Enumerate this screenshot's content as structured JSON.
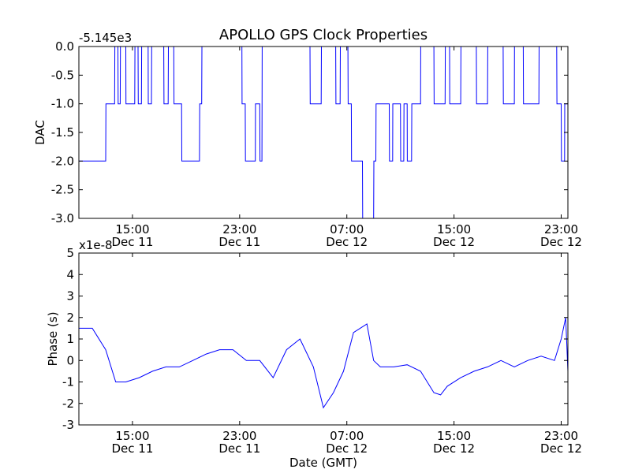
{
  "chart_data": [
    {
      "type": "line",
      "title": "APOLLO GPS Clock Properties",
      "ylabel": "DAC",
      "offset_text": "-5.145e3",
      "ylim": [
        -3.0,
        0.0
      ],
      "yticks": [
        "-3.0",
        "-2.5",
        "-2.0",
        "-1.5",
        "-1.0",
        "-0.5",
        "0.0"
      ],
      "xlim": [
        "2011-12-11T11:00",
        "2011-12-12T23:30"
      ],
      "xticks": [
        {
          "time": "Dec 11 15:00",
          "line1": "15:00",
          "line2": "Dec 11"
        },
        {
          "time": "Dec 11 23:00",
          "line1": "23:00",
          "line2": "Dec 11"
        },
        {
          "time": "Dec 12 07:00",
          "line1": "07:00",
          "line2": "Dec 12"
        },
        {
          "time": "Dec 12 15:00",
          "line1": "15:00",
          "line2": "Dec 12"
        },
        {
          "time": "Dec 12 23:00",
          "line1": "23:00",
          "line2": "Dec 12"
        }
      ],
      "line_color": "#0000ff",
      "series": [
        {
          "x": [
            "Dec 11 11:00",
            "Dec 11 13:00",
            "Dec 11 13:01",
            "Dec 11 13:40",
            "Dec 11 13:41",
            "Dec 11 13:55",
            "Dec 11 13:56",
            "Dec 11 14:05",
            "Dec 11 14:06",
            "Dec 11 14:30",
            "Dec 11 14:31",
            "Dec 11 15:10",
            "Dec 11 15:11",
            "Dec 11 15:25",
            "Dec 11 15:26",
            "Dec 11 15:40",
            "Dec 11 15:41",
            "Dec 11 16:10",
            "Dec 11 16:11",
            "Dec 11 16:25",
            "Dec 11 16:26",
            "Dec 11 17:20",
            "Dec 11 17:21",
            "Dec 11 17:40",
            "Dec 11 17:41",
            "Dec 11 18:05",
            "Dec 11 18:06",
            "Dec 11 18:40",
            "Dec 11 18:41",
            "Dec 11 20:00",
            "Dec 11 20:01",
            "Dec 11 20:10",
            "Dec 11 20:11",
            "Dec 11 23:10",
            "Dec 11 23:11",
            "Dec 11 23:25",
            "Dec 11 23:26",
            "Dec 12 00:10",
            "Dec 12 00:11",
            "Dec 12 00:30",
            "Dec 12 00:31",
            "Dec 12 00:40",
            "Dec 12 00:41",
            "Dec 12 04:15",
            "Dec 12 04:16",
            "Dec 12 05:05",
            "Dec 12 05:06",
            "Dec 12 06:10",
            "Dec 12 06:11",
            "Dec 12 06:30",
            "Dec 12 06:31",
            "Dec 12 07:05",
            "Dec 12 07:06",
            "Dec 12 07:20",
            "Dec 12 07:21",
            "Dec 12 08:10",
            "Dec 12 08:11",
            "Dec 12 09:00",
            "Dec 12 09:01",
            "Dec 12 09:10",
            "Dec 12 09:11",
            "Dec 12 10:10",
            "Dec 12 10:11",
            "Dec 12 10:25",
            "Dec 12 10:26",
            "Dec 12 11:00",
            "Dec 12 11:01",
            "Dec 12 11:15",
            "Dec 12 11:16",
            "Dec 12 11:30",
            "Dec 12 11:31",
            "Dec 12 11:50",
            "Dec 12 11:51",
            "Dec 12 12:30",
            "Dec 12 12:31",
            "Dec 12 13:30",
            "Dec 12 13:31",
            "Dec 12 14:20",
            "Dec 12 14:21",
            "Dec 12 14:40",
            "Dec 12 14:41",
            "Dec 12 15:30",
            "Dec 12 15:31",
            "Dec 12 16:40",
            "Dec 12 16:41",
            "Dec 12 17:30",
            "Dec 12 17:31",
            "Dec 12 18:40",
            "Dec 12 18:41",
            "Dec 12 19:30",
            "Dec 12 19:31",
            "Dec 12 20:10",
            "Dec 12 20:11",
            "Dec 12 21:20",
            "Dec 12 21:21",
            "Dec 12 22:40",
            "Dec 12 22:41",
            "Dec 12 23:00",
            "Dec 12 23:01",
            "Dec 12 23:15",
            "Dec 12 23:16",
            "Dec 12 23:30"
          ],
          "y": [
            -2.0,
            -2.0,
            -1.0,
            -1.0,
            0.0,
            0.0,
            -1.0,
            -1.0,
            0.0,
            0.0,
            -1.0,
            -1.0,
            0.0,
            0.0,
            -1.0,
            -1.0,
            0.0,
            0.0,
            -1.0,
            -1.0,
            0.0,
            0.0,
            -1.0,
            -1.0,
            0.0,
            0.0,
            -1.0,
            -1.0,
            -2.0,
            -2.0,
            -1.0,
            -1.0,
            0.0,
            0.0,
            -1.0,
            -1.0,
            -2.0,
            -2.0,
            -1.0,
            -1.0,
            -2.0,
            -2.0,
            0.0,
            0.0,
            -1.0,
            -1.0,
            0.0,
            0.0,
            -1.0,
            -1.0,
            0.0,
            0.0,
            -1.0,
            -1.0,
            -2.0,
            -2.0,
            -3.0,
            -3.0,
            -2.0,
            -2.0,
            -1.0,
            -1.0,
            -2.0,
            -2.0,
            -1.0,
            -1.0,
            -2.0,
            -2.0,
            -1.0,
            -1.0,
            -2.0,
            -2.0,
            -1.0,
            -1.0,
            0.0,
            0.0,
            -1.0,
            -1.0,
            0.0,
            0.0,
            -1.0,
            -1.0,
            0.0,
            0.0,
            -1.0,
            -1.0,
            0.0,
            0.0,
            -1.0,
            -1.0,
            0.0,
            0.0,
            -1.0,
            -1.0,
            0.0,
            0.0,
            -1.0,
            -1.0,
            -2.0,
            -2.0,
            -1.0,
            -1.0
          ]
        }
      ]
    },
    {
      "type": "line",
      "ylabel": "Phase (s)",
      "xlabel": "Date (GMT)",
      "offset_text": "x1e-8",
      "ylim": [
        -3,
        5
      ],
      "yticks": [
        "-3",
        "-2",
        "-1",
        "0",
        "1",
        "2",
        "3",
        "4",
        "5"
      ],
      "xlim": [
        "2011-12-11T11:00",
        "2011-12-12T23:30"
      ],
      "xticks": [
        {
          "time": "Dec 11 15:00",
          "line1": "15:00",
          "line2": "Dec 11"
        },
        {
          "time": "Dec 11 23:00",
          "line1": "23:00",
          "line2": "Dec 11"
        },
        {
          "time": "Dec 12 07:00",
          "line1": "07:00",
          "line2": "Dec 12"
        },
        {
          "time": "Dec 12 15:00",
          "line1": "15:00",
          "line2": "Dec 12"
        },
        {
          "time": "Dec 12 23:00",
          "line1": "23:00",
          "line2": "Dec 12"
        }
      ],
      "line_color": "#0000ff",
      "series": [
        {
          "x": [
            "Dec 11 11:00",
            "Dec 11 12:00",
            "Dec 11 13:00",
            "Dec 11 13:45",
            "Dec 11 14:30",
            "Dec 11 15:30",
            "Dec 11 16:30",
            "Dec 11 17:30",
            "Dec 11 18:30",
            "Dec 11 19:30",
            "Dec 11 20:30",
            "Dec 11 21:30",
            "Dec 11 22:30",
            "Dec 11 23:30",
            "Dec 12 00:30",
            "Dec 12 01:30",
            "Dec 12 02:30",
            "Dec 12 03:30",
            "Dec 12 04:30",
            "Dec 12 05:15",
            "Dec 12 06:00",
            "Dec 12 06:45",
            "Dec 12 07:30",
            "Dec 12 08:30",
            "Dec 12 09:00",
            "Dec 12 09:30",
            "Dec 12 10:30",
            "Dec 12 11:30",
            "Dec 12 12:30",
            "Dec 12 13:30",
            "Dec 12 14:00",
            "Dec 12 14:30",
            "Dec 12 15:30",
            "Dec 12 16:30",
            "Dec 12 17:30",
            "Dec 12 18:30",
            "Dec 12 19:30",
            "Dec 12 20:30",
            "Dec 12 21:30",
            "Dec 12 22:30",
            "Dec 12 23:00",
            "Dec 12 23:20",
            "Dec 12 23:30"
          ],
          "y": [
            1.5,
            1.5,
            0.5,
            -1.0,
            -1.0,
            -0.8,
            -0.5,
            -0.3,
            -0.3,
            0.0,
            0.3,
            0.5,
            0.5,
            0.0,
            0.0,
            -0.8,
            0.5,
            1.0,
            -0.3,
            -2.2,
            -1.5,
            -0.5,
            1.3,
            1.7,
            0.0,
            -0.3,
            -0.3,
            -0.2,
            -0.5,
            -1.5,
            -1.6,
            -1.2,
            -0.8,
            -0.5,
            -0.3,
            0.0,
            -0.3,
            0.0,
            0.2,
            0.0,
            1.0,
            2.0,
            -0.5
          ]
        }
      ]
    }
  ]
}
